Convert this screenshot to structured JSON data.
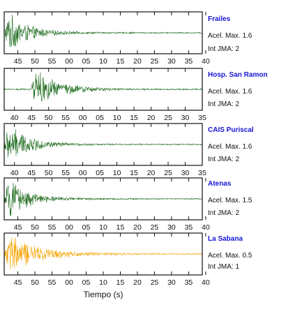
{
  "chart_data": {
    "type": "line",
    "xlabel": "Tiempo (s)",
    "panels": [
      {
        "station": "Frailes",
        "accel_label": "Acel. Max.",
        "accel_value": 1.6,
        "int_label": "Int JMA:",
        "int_value": 2,
        "color": "#1d6b1d",
        "tick_labels": [
          "45",
          "50",
          "55",
          "00",
          "05",
          "10",
          "15",
          "20",
          "25",
          "30",
          "35",
          "40"
        ],
        "first_tick_offset_s": 4,
        "window_s": 58,
        "onset_s": 0,
        "peak_amplitude_frac": 1.0,
        "decay_s": 6
      },
      {
        "station": "Hosp. San Ramon",
        "accel_label": "Acel. Max.",
        "accel_value": 1.6,
        "int_label": "Int JMA:",
        "int_value": 2,
        "color": "#1d6b1d",
        "tick_labels": [
          "40",
          "45",
          "50",
          "55",
          "00",
          "05",
          "10",
          "15",
          "20",
          "25",
          "30",
          "35"
        ],
        "first_tick_offset_s": 3,
        "window_s": 58,
        "onset_s": 8,
        "peak_amplitude_frac": 1.0,
        "decay_s": 7
      },
      {
        "station": "CAIS Puriscal",
        "accel_label": "Acel. Max.",
        "accel_value": 1.6,
        "int_label": "Int JMA:",
        "int_value": 2,
        "color": "#1d6b1d",
        "tick_labels": [
          "40",
          "45",
          "50",
          "55",
          "00",
          "05",
          "10",
          "15",
          "20",
          "25",
          "30",
          "35"
        ],
        "first_tick_offset_s": 3,
        "window_s": 58,
        "onset_s": 0,
        "peak_amplitude_frac": 1.0,
        "decay_s": 6
      },
      {
        "station": "Atenas",
        "accel_label": "Acel. Max.",
        "accel_value": 1.5,
        "int_label": "Int JMA:",
        "int_value": 2,
        "color": "#1d6b1d",
        "tick_labels": [
          "45",
          "50",
          "55",
          "00",
          "05",
          "10",
          "15",
          "20",
          "25",
          "30",
          "35",
          "40"
        ],
        "first_tick_offset_s": 4,
        "window_s": 58,
        "onset_s": 0,
        "peak_amplitude_frac": 0.95,
        "decay_s": 6
      },
      {
        "station": "La Sabana",
        "accel_label": "Acel. Max.",
        "accel_value": 0.5,
        "int_label": "Int JMA:",
        "int_value": 1,
        "color": "#f5a400",
        "tick_labels": [
          "45",
          "50",
          "55",
          "00",
          "05",
          "10",
          "15",
          "20",
          "25",
          "30",
          "35",
          "40"
        ],
        "first_tick_offset_s": 4,
        "window_s": 58,
        "onset_s": 0,
        "peak_amplitude_frac": 1.0,
        "decay_s": 9
      }
    ]
  }
}
